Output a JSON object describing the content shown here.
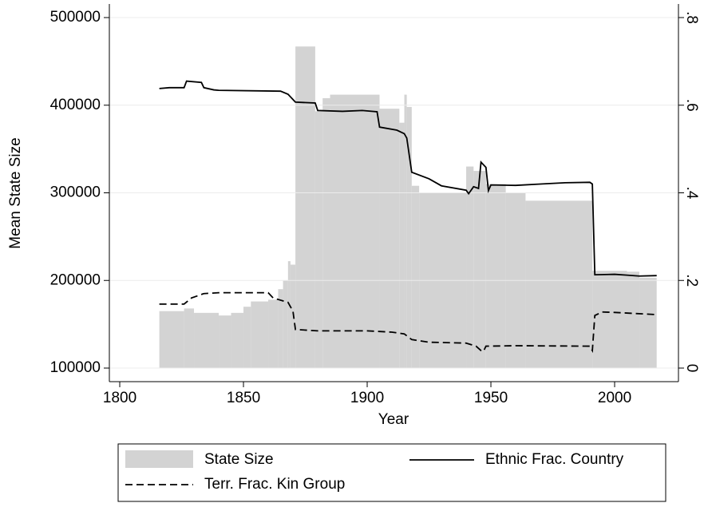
{
  "chart_data": {
    "type": "bar-line",
    "xlabel": "Year",
    "ylabel": "Mean State Size",
    "xlim": [
      1795.8,
      2025.8
    ],
    "xticks": [
      1800,
      1850,
      1900,
      1950,
      2000
    ],
    "ylim": [
      84500,
      515500
    ],
    "yticks": [
      100000,
      200000,
      300000,
      400000,
      500000
    ],
    "y2lim": [
      -0.031,
      0.831
    ],
    "y2ticks": [
      {
        "value": 0,
        "label": "0"
      },
      {
        "value": 0.2,
        "label": ".2"
      },
      {
        "value": 0.4,
        "label": ".4"
      },
      {
        "value": 0.6,
        "label": ".6"
      },
      {
        "value": 0.8,
        "label": ".8"
      }
    ],
    "grid": true,
    "legend": "bottom",
    "bars": {
      "name": "State Size",
      "color": "#d3d3d3",
      "bins": [
        1816,
        1826,
        1830,
        1840,
        1845,
        1850,
        1853,
        1860,
        1864,
        1866,
        1868,
        1869,
        1871,
        1879,
        1882,
        1885,
        1905,
        1913,
        1915,
        1916,
        1918,
        1921,
        1940,
        1943,
        1948,
        1956,
        1964,
        1991,
        2005,
        2010,
        2017
      ],
      "values": [
        165000,
        168000,
        163000,
        160000,
        163000,
        170000,
        176000,
        178000,
        190000,
        200000,
        222000,
        218000,
        467000,
        393000,
        408000,
        412000,
        396000,
        380000,
        412000,
        398000,
        308000,
        300000,
        330000,
        325000,
        310000,
        300000,
        291000,
        211000,
        210000,
        203000
      ]
    },
    "series": [
      {
        "name": "Ethnic Frac. Country",
        "color": "#000000",
        "axis": "y2",
        "dash": "solid",
        "x": [
          1816,
          1820,
          1826,
          1827,
          1833,
          1834,
          1838,
          1840,
          1865,
          1868,
          1871,
          1879,
          1880,
          1890,
          1898,
          1904,
          1905,
          1912,
          1915,
          1916,
          1918,
          1925,
          1930,
          1940,
          1941,
          1943,
          1945,
          1946,
          1948,
          1949,
          1950,
          1960,
          1970,
          1980,
          1990,
          1991,
          1992,
          2000,
          2005,
          2010,
          2017
        ],
        "values": [
          0.638,
          0.64,
          0.64,
          0.655,
          0.652,
          0.64,
          0.635,
          0.634,
          0.632,
          0.625,
          0.607,
          0.605,
          0.588,
          0.586,
          0.588,
          0.585,
          0.55,
          0.543,
          0.535,
          0.525,
          0.447,
          0.432,
          0.416,
          0.406,
          0.398,
          0.414,
          0.41,
          0.47,
          0.458,
          0.405,
          0.418,
          0.417,
          0.42,
          0.423,
          0.424,
          0.42,
          0.213,
          0.214,
          0.212,
          0.21,
          0.211
        ]
      },
      {
        "name": "Terr. Frac. Kin Group",
        "color": "#000000",
        "axis": "y2",
        "dash": "dashed",
        "x": [
          1816,
          1826,
          1829,
          1834,
          1840,
          1850,
          1860,
          1862,
          1868,
          1870,
          1871,
          1880,
          1900,
          1910,
          1915,
          1918,
          1925,
          1940,
          1944,
          1946,
          1947,
          1948,
          1960,
          1990,
          1991,
          1992,
          1995,
          2000,
          2017
        ],
        "values": [
          0.146,
          0.146,
          0.16,
          0.17,
          0.172,
          0.172,
          0.172,
          0.16,
          0.15,
          0.13,
          0.088,
          0.085,
          0.085,
          0.082,
          0.078,
          0.065,
          0.059,
          0.057,
          0.05,
          0.04,
          0.038,
          0.05,
          0.051,
          0.05,
          0.04,
          0.12,
          0.128,
          0.127,
          0.122
        ]
      }
    ]
  }
}
